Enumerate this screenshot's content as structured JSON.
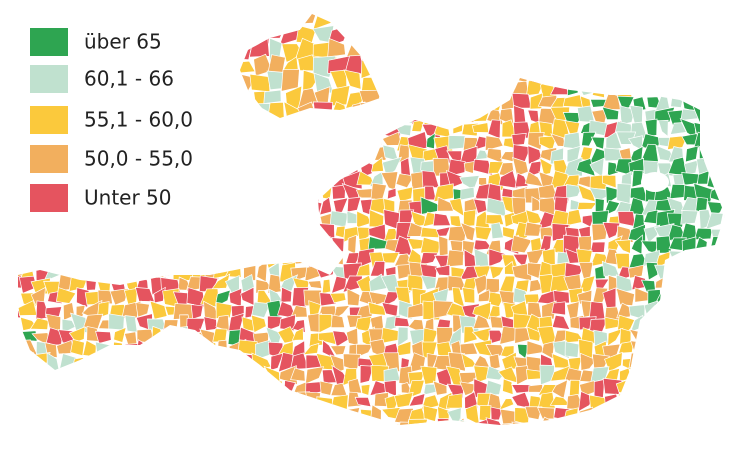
{
  "legend": {
    "items": [
      {
        "label": "über 65",
        "color": "#2ea551"
      },
      {
        "label": "60,1 - 66",
        "color": "#c0e1cf"
      },
      {
        "label": "55,1 - 60,0",
        "color": "#fbc93c"
      },
      {
        "label": "50,0 - 55,0",
        "color": "#f2af5e"
      },
      {
        "label": "Unter 50",
        "color": "#e5545f"
      }
    ]
  }
}
